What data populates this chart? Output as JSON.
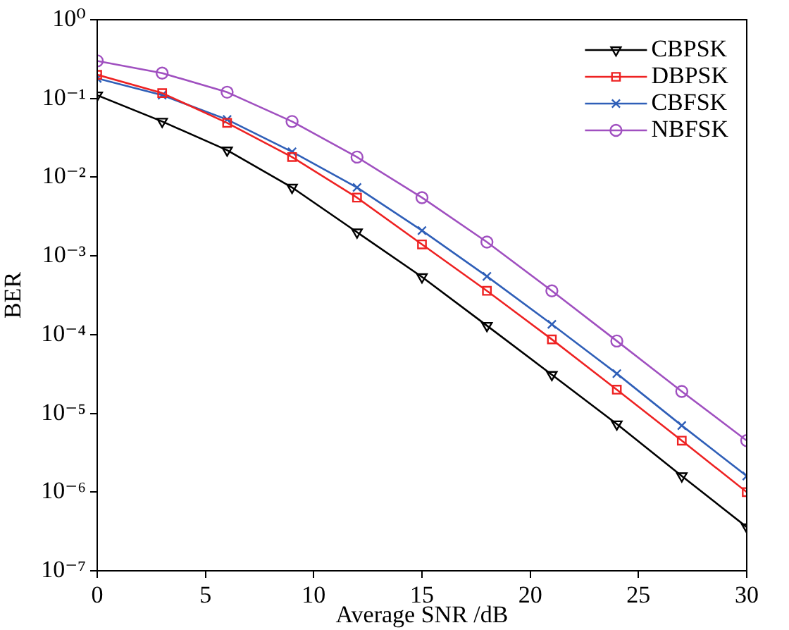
{
  "chart_data": {
    "type": "line",
    "xlabel": "Average SNR /dB",
    "ylabel": "BER",
    "log": "y",
    "grid": false,
    "legend": "top right",
    "line_style": "solid",
    "x": [
      0,
      3,
      6,
      9,
      12,
      15,
      18,
      21,
      24,
      27,
      30
    ],
    "xlim": [
      0,
      30
    ],
    "xticks": [
      0,
      5,
      10,
      15,
      20,
      25,
      30
    ],
    "ylim": [
      1e-07,
      1
    ],
    "yticks": [
      {
        "value": 1e-07,
        "label": "10⁻⁷"
      },
      {
        "value": 1e-06,
        "label": "10⁻⁶"
      },
      {
        "value": 1e-05,
        "label": "10⁻⁵"
      },
      {
        "value": 0.0001,
        "label": "10⁻⁴"
      },
      {
        "value": 0.001,
        "label": "10⁻³"
      },
      {
        "value": 0.01,
        "label": "10⁻²"
      },
      {
        "value": 0.1,
        "label": "10⁻¹"
      },
      {
        "value": 1,
        "label": "10⁰"
      }
    ],
    "series": [
      {
        "name": "CBPSK",
        "color": "#000000",
        "marker": "triangle",
        "values": [
          0.11,
          0.051,
          0.022,
          0.0074,
          0.002,
          0.00054,
          0.00013,
          3.1e-05,
          7.3e-06,
          1.6e-06,
          3.6e-07
        ]
      },
      {
        "name": "DBPSK",
        "color": "#ee2222",
        "marker": "square",
        "values": [
          0.2,
          0.117,
          0.049,
          0.018,
          0.0055,
          0.0014,
          0.00036,
          8.7e-05,
          2e-05,
          4.5e-06,
          1e-06
        ]
      },
      {
        "name": "CBFSK",
        "color": "#2f5fb8",
        "marker": "cross",
        "values": [
          0.18,
          0.11,
          0.054,
          0.021,
          0.0074,
          0.0021,
          0.00055,
          0.000135,
          3.2e-05,
          7e-06,
          1.6e-06
        ]
      },
      {
        "name": "NBFSK",
        "color": "#a050c0",
        "marker": "circle",
        "values": [
          0.3,
          0.21,
          0.12,
          0.051,
          0.018,
          0.0055,
          0.0015,
          0.00036,
          8.3e-05,
          1.9e-05,
          4.5e-06
        ]
      }
    ]
  }
}
